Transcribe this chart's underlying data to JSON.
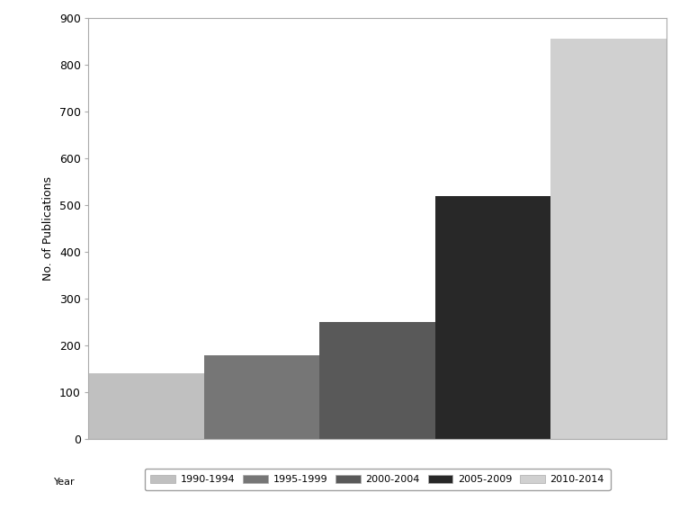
{
  "categories": [
    "1990-1994",
    "1995-1999",
    "2000-2004",
    "2005-2009",
    "2010-2014"
  ],
  "values": [
    140,
    178,
    250,
    518,
    856
  ],
  "bar_colors": [
    "#c0c0c0",
    "#767676",
    "#595959",
    "#282828",
    "#d0d0d0"
  ],
  "ylabel": "No. of Publications",
  "ylim": [
    0,
    900
  ],
  "yticks": [
    0,
    100,
    200,
    300,
    400,
    500,
    600,
    700,
    800,
    900
  ],
  "legend_label": "Year",
  "background_color": "#ffffff",
  "bar_width": 1.0
}
